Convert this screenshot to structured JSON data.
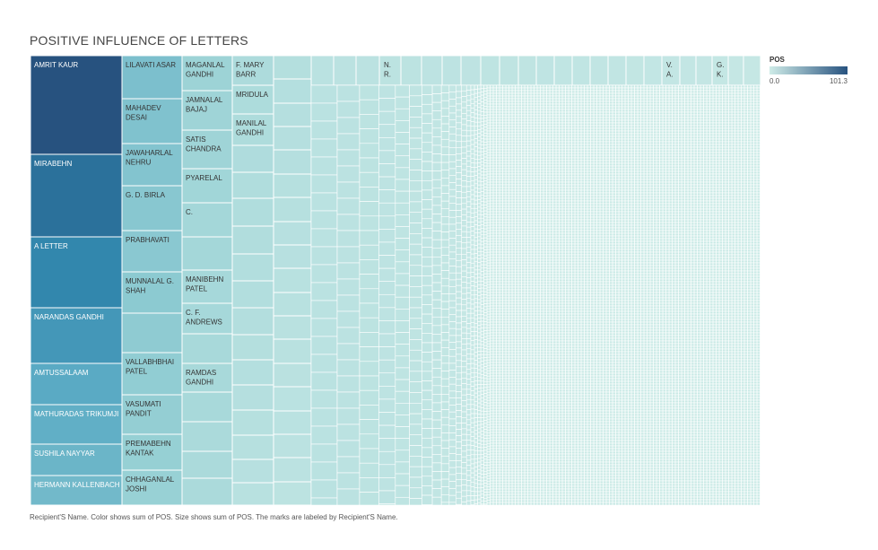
{
  "title": "POSITIVE INFLUENCE OF LETTERS",
  "footnote": "Recipient'S Name.  Color shows sum of POS.  Size shows sum of POS.  The marks are labeled by Recipient'S Name.",
  "legend": {
    "title": "POS",
    "min_label": "0.0",
    "max_label": "101.3",
    "color_low": "#cfece8",
    "color_high": "#27527f"
  },
  "chart_data": {
    "type": "treemap",
    "title": "POSITIVE INFLUENCE OF LETTERS",
    "measure": "POS",
    "color_range": [
      0.0,
      101.3
    ],
    "labeled_items": [
      {
        "name": "AMRIT KAUR",
        "value": 101.3
      },
      {
        "name": "MIRABEHN",
        "value": 84
      },
      {
        "name": "A LETTER",
        "value": 73
      },
      {
        "name": "NARANDAS GANDHI",
        "value": 58
      },
      {
        "name": "AMTUSSALAAM",
        "value": 42
      },
      {
        "name": "MATHURADAS TRIKUMJI",
        "value": 38
      },
      {
        "name": "SUSHILA NAYYAR",
        "value": 32
      },
      {
        "name": "HERMANN KALLENBACH",
        "value": 29
      },
      {
        "name": "LILAVATI ASAR",
        "value": 27
      },
      {
        "name": "MAHADEV DESAI",
        "value": 25
      },
      {
        "name": "JAWAHARLAL NEHRU",
        "value": 24
      },
      {
        "name": "G. D. BIRLA",
        "value": 22
      },
      {
        "name": "PRABHAVATI",
        "value": 21
      },
      {
        "name": "MUNNALAL G. SHAH",
        "value": 20
      },
      {
        "name": "VALLABHBHAI PATEL",
        "value": 19
      },
      {
        "name": "VASUMATI PANDIT",
        "value": 18
      },
      {
        "name": "PREMABEHN KANTAK",
        "value": 17
      },
      {
        "name": "CHHAGANLAL JOSHI",
        "value": 16
      },
      {
        "name": "MAGANLAL GANDHI",
        "value": 15
      },
      {
        "name": "JAMNALAL BAJAJ",
        "value": 15
      },
      {
        "name": "SATIS CHANDRA",
        "value": 14
      },
      {
        "name": "PYARELAL",
        "value": 13
      },
      {
        "name": "C.",
        "value": 13
      },
      {
        "name": "MANIBEHN PATEL",
        "value": 12
      },
      {
        "name": "C. F. ANDREWS",
        "value": 12
      },
      {
        "name": "RAMDAS GANDHI",
        "value": 11
      },
      {
        "name": "F. MARY BARR",
        "value": 10
      },
      {
        "name": "MRIDULA",
        "value": 9
      },
      {
        "name": "MANILAL GANDHI",
        "value": 9
      },
      {
        "name": "N. R.",
        "value": 6
      },
      {
        "name": "V. A.",
        "value": 5
      },
      {
        "name": "G. K.",
        "value": 5
      }
    ]
  },
  "treemap_labels": {
    "c0": [
      "AMRIT KAUR",
      "MIRABEHN",
      "A LETTER",
      "NARANDAS GANDHI",
      "AMTUSSALAAM",
      "MATHURADAS TRIKUMJI",
      "SUSHILA NAYYAR",
      "HERMANN KALLENBACH"
    ],
    "c1": [
      "LILAVATI ASAR",
      "MAHADEV\nDESAI",
      "JAWAHARLAL\nNEHRU",
      "G. D. BIRLA",
      "PRABHAVATI",
      "MUNNALAL G.\nSHAH",
      "",
      "VALLABHBHAI\nPATEL",
      "VASUMATI\nPANDIT",
      "PREMABEHN\nKANTAK",
      "CHHAGANLAL\nJOSHI"
    ],
    "c2": [
      "MAGANLAL\nGANDHI",
      "JAMNALAL\nBAJAJ",
      "SATIS\nCHANDRA",
      "PYARELAL",
      "C.",
      "",
      "MANIBEHN\nPATEL",
      "C. F.\nANDREWS",
      "",
      "RAMDAS\nGANDHI",
      "",
      "",
      ""
    ],
    "c3": [
      "F. MARY\nBARR",
      "MRIDULA",
      "MANILAL\nGANDHI"
    ],
    "top": [
      "N.\nR.",
      "V.\nA.",
      "G.\nK."
    ]
  }
}
